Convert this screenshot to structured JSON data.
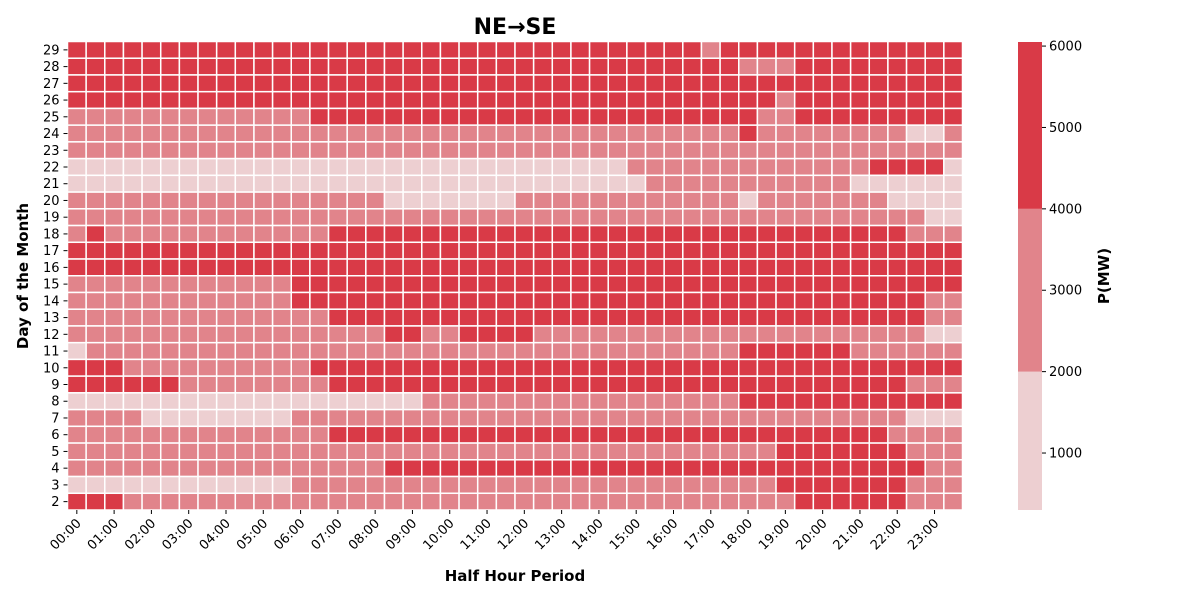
{
  "chart_data": {
    "type": "heatmap",
    "title": "NE→SE",
    "xlabel": "Half Hour Period",
    "ylabel": "Day of the Month",
    "colorbar_label": "P(MW)",
    "x_tick_labels": [
      "00:00",
      "01:00",
      "02:00",
      "03:00",
      "04:00",
      "05:00",
      "06:00",
      "07:00",
      "08:00",
      "09:00",
      "10:00",
      "11:00",
      "12:00",
      "13:00",
      "14:00",
      "15:00",
      "16:00",
      "17:00",
      "18:00",
      "19:00",
      "20:00",
      "21:00",
      "22:00",
      "23:00"
    ],
    "y_tick_labels": [
      "29",
      "28",
      "27",
      "26",
      "25",
      "24",
      "23",
      "22",
      "21",
      "20",
      "19",
      "18",
      "17",
      "16",
      "15",
      "14",
      "13",
      "12",
      "11",
      "10",
      "9",
      "8",
      "7",
      "6",
      "5",
      "4",
      "3",
      "2"
    ],
    "colorbar_ticks": [
      1000,
      2000,
      3000,
      4000,
      5000,
      6000
    ],
    "color_range": [
      300,
      6050
    ],
    "color_bins": [
      {
        "range": [
          300,
          2000
        ],
        "color": "#edcfd1"
      },
      {
        "range": [
          2000,
          4000
        ],
        "color": "#e1848b"
      },
      {
        "range": [
          4000,
          6050
        ],
        "color": "#d93a47"
      }
    ],
    "grid": "white cell borders",
    "encoding": "0 = below 2000 MW, 1 = 2000-4000 MW, 2 = above 4000 MW",
    "rows": [
      "222222222222222222222222222222222212222222222222",
      "222222222222222222222222222222222222111222222222",
      "222222222222222222222222222222222222222222222222",
      "222222222222222222222222222222222222221222222222",
      "111111111111122222222222222222222222211222222222",
      "111111111111111111111111111111111111211111111001",
      "111111111111111111111111111111111111111111111111",
      "000000000000000000000000000000111111111111122220",
      "000000000000000000000000000000011111111111000000",
      "111111111111111110000000111111111111011111110000",
      "111111111111111111111111111111111111111111111100",
      "121111111111112222222222222222222222222222222111",
      "222222222222222222222222222222222222222222222222",
      "222222222222222222222222222222222222222222222222",
      "111111111111222222222222222222222222222222222222",
      "111111111111222222222222222222222222222222222211",
      "111111111111112222222222222222222222222222222211",
      "111111111111111112211222211111111111111111111100",
      "011111111111111111111111111111111111222222111111",
      "222111111111122222222222222222222222222222222222",
      "222222111111112222222222222222222222222222222111",
      "000000000000000000011111111111111111222222222222",
      "111100000000111111111111111111111111111111111000",
      "111111111111112222222222222222222222222222221111",
      "111111111111111111111111111111111111112222222111",
      "111111111111111112222222222222222222222222222211",
      "000000000000111111111111111111111111112222222111",
      "222111111111111111111111111111111111111222222111"
    ]
  }
}
